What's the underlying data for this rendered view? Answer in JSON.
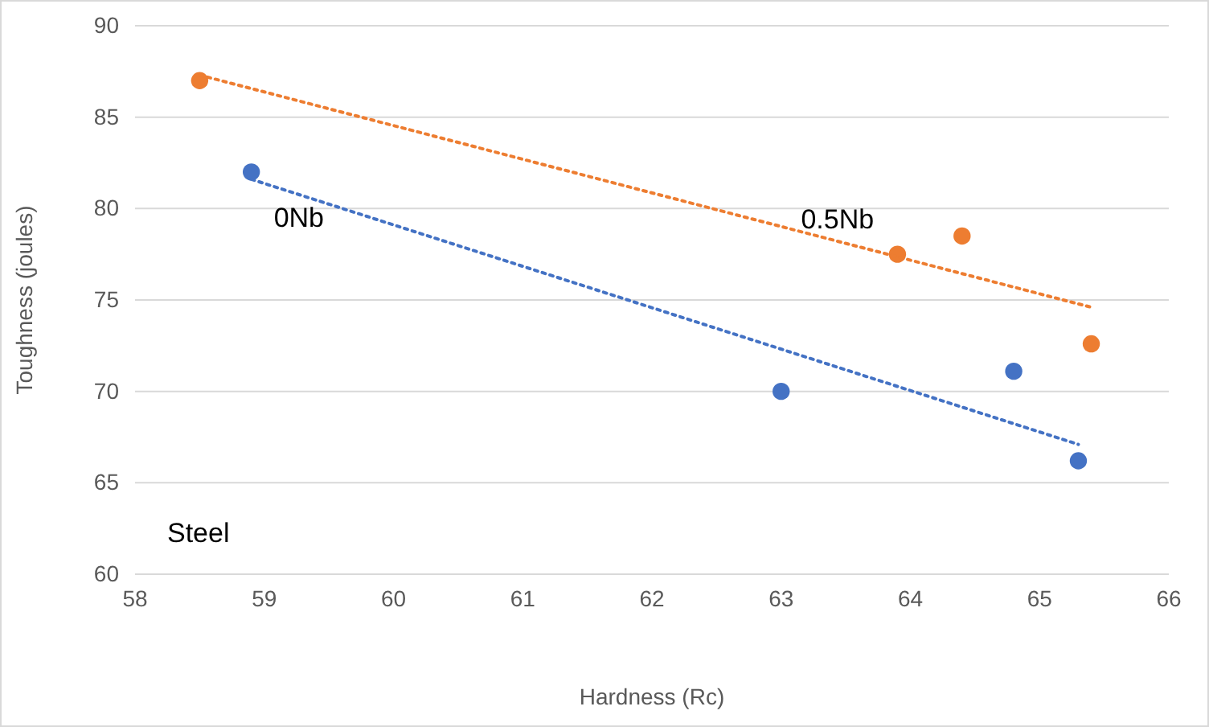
{
  "chart_data": {
    "type": "scatter",
    "xlabel": "Hardness (Rc)",
    "ylabel": "Toughness (joules)",
    "xlim": [
      58,
      66
    ],
    "xticks": [
      58,
      59,
      60,
      61,
      62,
      63,
      64,
      65,
      66
    ],
    "ylim": [
      60,
      90
    ],
    "yticks": [
      60,
      65,
      70,
      75,
      80,
      85,
      90
    ],
    "grid": "y",
    "annotations": [
      "Steel"
    ],
    "series": [
      {
        "name": "0Nb",
        "color": "#4472c4",
        "marker": "circle",
        "x": [
          58.9,
          63.0,
          64.8,
          65.3
        ],
        "values": [
          82.0,
          70.0,
          71.1,
          66.2
        ]
      },
      {
        "name": "0.5Nb",
        "color": "#ed7d31",
        "marker": "circle",
        "x": [
          58.5,
          63.9,
          64.4,
          65.4
        ],
        "values": [
          87.0,
          77.5,
          78.5,
          72.6
        ]
      },
      {
        "type": "line",
        "color": "#4472c4",
        "line_style": "dotted",
        "x": [
          58.9,
          65.3
        ],
        "values": [
          81.6,
          67.1
        ]
      },
      {
        "type": "line",
        "color": "#ed7d31",
        "line_style": "dotted",
        "x": [
          58.5,
          65.4
        ],
        "values": [
          87.3,
          74.6
        ]
      }
    ]
  }
}
